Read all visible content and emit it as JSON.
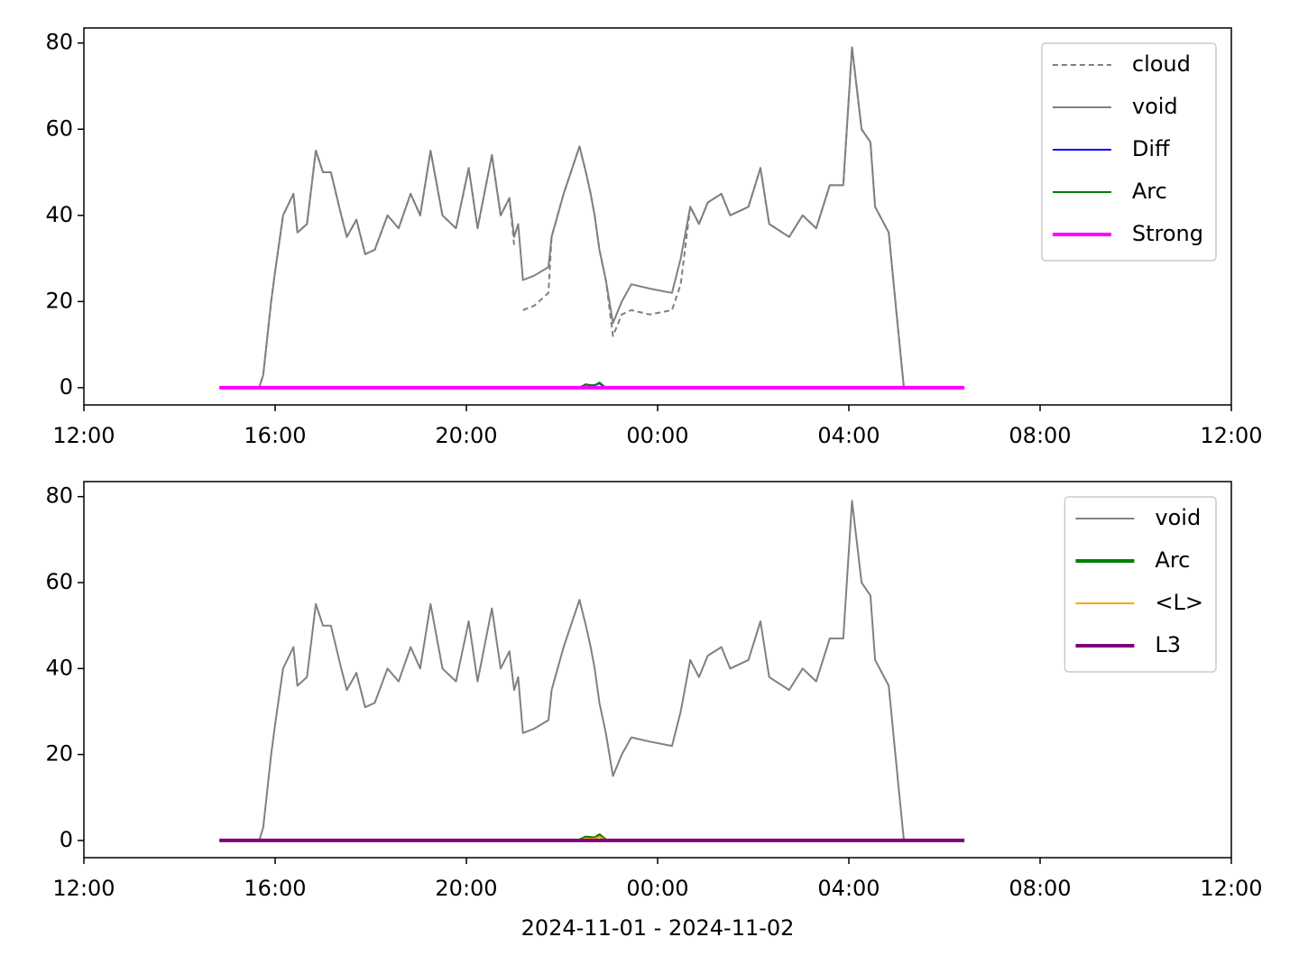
{
  "chart_data": [
    {
      "type": "line",
      "x": [
        "2024-11-01T14:50",
        "2024-11-01T15:40",
        "2024-11-01T15:45",
        "2024-11-01T15:55",
        "2024-11-01T16:00",
        "2024-11-01T16:10",
        "2024-11-01T16:23",
        "2024-11-01T16:28",
        "2024-11-01T16:40",
        "2024-11-01T16:51",
        "2024-11-01T17:00",
        "2024-11-01T17:10",
        "2024-11-01T17:23",
        "2024-11-01T17:30",
        "2024-11-01T17:42",
        "2024-11-01T17:53",
        "2024-11-01T18:05",
        "2024-11-01T18:21",
        "2024-11-01T18:35",
        "2024-11-01T18:50",
        "2024-11-01T19:02",
        "2024-11-01T19:15",
        "2024-11-01T19:30",
        "2024-11-01T19:47",
        "2024-11-01T20:03",
        "2024-11-01T20:14",
        "2024-11-01T20:32",
        "2024-11-01T20:43",
        "2024-11-01T20:54",
        "2024-11-01T21:00",
        "2024-11-01T21:05",
        "2024-11-01T21:11",
        "2024-11-01T21:25",
        "2024-11-01T21:43",
        "2024-11-01T21:47",
        "2024-11-01T22:02",
        "2024-11-01T22:22",
        "2024-11-01T22:30",
        "2024-11-01T22:36",
        "2024-11-01T22:41",
        "2024-11-01T22:47",
        "2024-11-01T22:55",
        "2024-11-01T23:04",
        "2024-11-01T23:15",
        "2024-11-01T23:27",
        "2024-11-01T23:50",
        "2024-11-02T00:18",
        "2024-11-02T00:29",
        "2024-11-02T00:41",
        "2024-11-02T00:52",
        "2024-11-02T01:03",
        "2024-11-02T01:20",
        "2024-11-02T01:31",
        "2024-11-02T01:54",
        "2024-11-02T02:09",
        "2024-11-02T02:20",
        "2024-11-02T02:45",
        "2024-11-02T03:02",
        "2024-11-02T03:19",
        "2024-11-02T03:36",
        "2024-11-02T03:53",
        "2024-11-02T04:04",
        "2024-11-02T04:16",
        "2024-11-02T04:27",
        "2024-11-02T04:33",
        "2024-11-02T04:50",
        "2024-11-02T05:01",
        "2024-11-02T05:09",
        "2024-11-02T06:25"
      ],
      "series": [
        {
          "name": "cloud",
          "color": "#808080",
          "linestyle": "dashed",
          "linewidth": 2,
          "values": [
            0,
            0,
            3,
            20,
            27,
            40,
            45,
            36,
            38,
            55,
            50,
            50,
            40,
            35,
            39,
            31,
            32,
            40,
            37,
            45,
            40,
            55,
            40,
            37,
            51,
            37,
            54,
            40,
            44,
            33,
            null,
            18,
            19,
            22,
            35,
            45,
            56,
            50,
            45,
            40,
            32,
            25,
            12,
            17,
            18,
            17,
            18,
            24,
            42,
            38,
            43,
            45,
            40,
            42,
            51,
            38,
            35,
            40,
            37,
            47,
            47,
            79,
            60,
            57,
            42,
            36,
            15,
            0,
            0
          ]
        },
        {
          "name": "void",
          "color": "#808080",
          "linestyle": "solid",
          "linewidth": 2,
          "values": [
            0,
            0,
            3,
            20,
            27,
            40,
            45,
            36,
            38,
            55,
            50,
            50,
            40,
            35,
            39,
            31,
            32,
            40,
            37,
            45,
            40,
            55,
            40,
            37,
            51,
            37,
            54,
            40,
            44,
            35,
            38,
            25,
            26,
            28,
            35,
            45,
            56,
            50,
            45,
            40,
            32,
            25,
            15,
            20,
            24,
            23,
            22,
            30,
            42,
            38,
            43,
            45,
            40,
            42,
            51,
            38,
            35,
            40,
            37,
            47,
            47,
            79,
            60,
            57,
            42,
            36,
            15,
            0,
            0
          ]
        },
        {
          "name": "Diff",
          "color": "#0000ff",
          "linestyle": "solid",
          "linewidth": 2,
          "x": [
            "2024-11-01T22:22",
            "2024-11-01T22:30",
            "2024-11-01T22:36",
            "2024-11-01T22:41",
            "2024-11-01T22:47",
            "2024-11-01T22:55"
          ],
          "values": [
            0,
            0.8,
            0.5,
            0.6,
            1.0,
            0
          ]
        },
        {
          "name": "Arc",
          "color": "#008000",
          "linestyle": "solid",
          "linewidth": 2,
          "x": [
            "2024-11-01T22:22",
            "2024-11-01T22:30",
            "2024-11-01T22:36",
            "2024-11-01T22:41",
            "2024-11-01T22:47",
            "2024-11-01T22:55"
          ],
          "values": [
            0,
            0.7,
            0.6,
            0.5,
            1.2,
            0
          ]
        },
        {
          "name": "Strong",
          "color": "#ff00ff",
          "linestyle": "solid",
          "linewidth": 4,
          "x": [
            "2024-11-01T14:50",
            "2024-11-02T06:25"
          ],
          "values": [
            0,
            0
          ]
        }
      ],
      "xlim": [
        "2024-11-01T12:00",
        "2024-11-02T12:00"
      ],
      "xticks": [
        {
          "value": "2024-11-01T12:00",
          "label": "12:00"
        },
        {
          "value": "2024-11-01T16:00",
          "label": "16:00"
        },
        {
          "value": "2024-11-01T20:00",
          "label": "20:00"
        },
        {
          "value": "2024-11-02T00:00",
          "label": "00:00"
        },
        {
          "value": "2024-11-02T04:00",
          "label": "04:00"
        },
        {
          "value": "2024-11-02T08:00",
          "label": "08:00"
        },
        {
          "value": "2024-11-02T12:00",
          "label": "12:00"
        }
      ],
      "ylim": [
        -4,
        83.5
      ],
      "yticks": [
        0,
        20,
        40,
        60,
        80
      ],
      "legend": "upper right"
    },
    {
      "type": "line",
      "x": [
        "2024-11-01T14:50",
        "2024-11-01T15:40",
        "2024-11-01T15:45",
        "2024-11-01T15:55",
        "2024-11-01T16:00",
        "2024-11-01T16:10",
        "2024-11-01T16:23",
        "2024-11-01T16:28",
        "2024-11-01T16:40",
        "2024-11-01T16:51",
        "2024-11-01T17:00",
        "2024-11-01T17:10",
        "2024-11-01T17:23",
        "2024-11-01T17:30",
        "2024-11-01T17:42",
        "2024-11-01T17:53",
        "2024-11-01T18:05",
        "2024-11-01T18:21",
        "2024-11-01T18:35",
        "2024-11-01T18:50",
        "2024-11-01T19:02",
        "2024-11-01T19:15",
        "2024-11-01T19:30",
        "2024-11-01T19:47",
        "2024-11-01T20:03",
        "2024-11-01T20:14",
        "2024-11-01T20:32",
        "2024-11-01T20:43",
        "2024-11-01T20:54",
        "2024-11-01T21:00",
        "2024-11-01T21:05",
        "2024-11-01T21:11",
        "2024-11-01T21:25",
        "2024-11-01T21:43",
        "2024-11-01T21:47",
        "2024-11-01T22:02",
        "2024-11-01T22:22",
        "2024-11-01T22:30",
        "2024-11-01T22:36",
        "2024-11-01T22:41",
        "2024-11-01T22:47",
        "2024-11-01T22:55",
        "2024-11-01T23:04",
        "2024-11-01T23:15",
        "2024-11-01T23:27",
        "2024-11-01T23:50",
        "2024-11-02T00:18",
        "2024-11-02T00:29",
        "2024-11-02T00:41",
        "2024-11-02T00:52",
        "2024-11-02T01:03",
        "2024-11-02T01:20",
        "2024-11-02T01:31",
        "2024-11-02T01:54",
        "2024-11-02T02:09",
        "2024-11-02T02:20",
        "2024-11-02T02:45",
        "2024-11-02T03:02",
        "2024-11-02T03:19",
        "2024-11-02T03:36",
        "2024-11-02T03:53",
        "2024-11-02T04:04",
        "2024-11-02T04:16",
        "2024-11-02T04:27",
        "2024-11-02T04:33",
        "2024-11-02T04:50",
        "2024-11-02T05:01",
        "2024-11-02T05:09",
        "2024-11-02T06:25"
      ],
      "series": [
        {
          "name": "void",
          "color": "#808080",
          "linestyle": "solid",
          "linewidth": 2,
          "values": [
            0,
            0,
            3,
            20,
            27,
            40,
            45,
            36,
            38,
            55,
            50,
            50,
            40,
            35,
            39,
            31,
            32,
            40,
            37,
            45,
            40,
            55,
            40,
            37,
            51,
            37,
            54,
            40,
            44,
            35,
            38,
            25,
            26,
            28,
            35,
            45,
            56,
            50,
            45,
            40,
            32,
            25,
            15,
            20,
            24,
            23,
            22,
            30,
            42,
            38,
            43,
            45,
            40,
            42,
            51,
            38,
            35,
            40,
            37,
            47,
            47,
            79,
            60,
            57,
            42,
            36,
            15,
            0,
            0
          ]
        },
        {
          "name": "Arc",
          "color": "#008000",
          "linestyle": "solid",
          "linewidth": 4,
          "x": [
            "2024-11-01T22:22",
            "2024-11-01T22:30",
            "2024-11-01T22:36",
            "2024-11-01T22:41",
            "2024-11-01T22:47",
            "2024-11-01T22:55"
          ],
          "values": [
            0,
            0.7,
            0.6,
            0.5,
            1.2,
            0
          ]
        },
        {
          "name": "<L>",
          "color": "#ffa500",
          "linestyle": "solid",
          "linewidth": 2,
          "x": [
            "2024-11-01T22:22",
            "2024-11-01T22:30",
            "2024-11-01T22:36",
            "2024-11-01T22:41",
            "2024-11-01T22:47",
            "2024-11-01T22:55"
          ],
          "values": [
            0,
            0.5,
            0.4,
            0.4,
            0.9,
            0
          ]
        },
        {
          "name": "L3",
          "color": "#800080",
          "linestyle": "solid",
          "linewidth": 4,
          "x": [
            "2024-11-01T14:50",
            "2024-11-02T06:25"
          ],
          "values": [
            0,
            0
          ]
        }
      ],
      "xlim": [
        "2024-11-01T12:00",
        "2024-11-02T12:00"
      ],
      "xticks": [
        {
          "value": "2024-11-01T12:00",
          "label": "12:00"
        },
        {
          "value": "2024-11-01T16:00",
          "label": "16:00"
        },
        {
          "value": "2024-11-01T20:00",
          "label": "20:00"
        },
        {
          "value": "2024-11-02T00:00",
          "label": "00:00"
        },
        {
          "value": "2024-11-02T04:00",
          "label": "04:00"
        },
        {
          "value": "2024-11-02T08:00",
          "label": "08:00"
        },
        {
          "value": "2024-11-02T12:00",
          "label": "12:00"
        }
      ],
      "ylim": [
        -4,
        83.5
      ],
      "yticks": [
        0,
        20,
        40,
        60,
        80
      ],
      "legend": "upper right",
      "xlabel": "2024-11-01 - 2024-11-02"
    }
  ]
}
